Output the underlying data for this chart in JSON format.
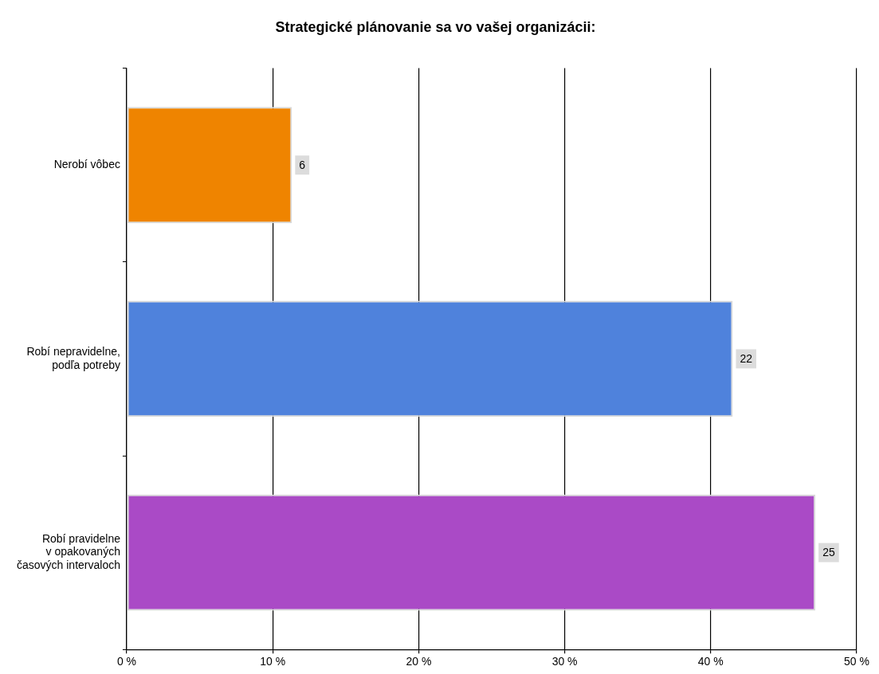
{
  "chart_data": {
    "type": "bar",
    "orientation": "horizontal",
    "title": "Strategické plánovanie sa vo vašej organizácii:",
    "categories": [
      "Nerobí vôbec",
      "Robí nepravidelne,\npodľa potreby",
      "Robí pravidelne\nv opakovaných\nčasových intervaloch"
    ],
    "values": [
      11.32,
      41.51,
      47.17
    ],
    "colors": [
      "#ef8400",
      "#4f82dc",
      "#aa4ac6"
    ],
    "annotations": [
      {
        "text": "6",
        "x": 11.32,
        "y": "Nerobí vôbec"
      },
      {
        "text": "22",
        "x": 41.51,
        "y": "Robí nepravidelne,\npodľa potreby"
      },
      {
        "text": "25",
        "x": 47.17,
        "y": "Robí pravidelne\nv opakovaných\nčasových intervaloch"
      }
    ],
    "xlim": [
      0,
      50
    ],
    "xticks": [
      {
        "value": 0,
        "label": "0 %"
      },
      {
        "value": 10,
        "label": "10 %"
      },
      {
        "value": 20,
        "label": "20 %"
      },
      {
        "value": 30,
        "label": "30 %"
      },
      {
        "value": 40,
        "label": "40 %"
      },
      {
        "value": 50,
        "label": "50 %"
      }
    ],
    "grid": "x",
    "legend": false
  }
}
